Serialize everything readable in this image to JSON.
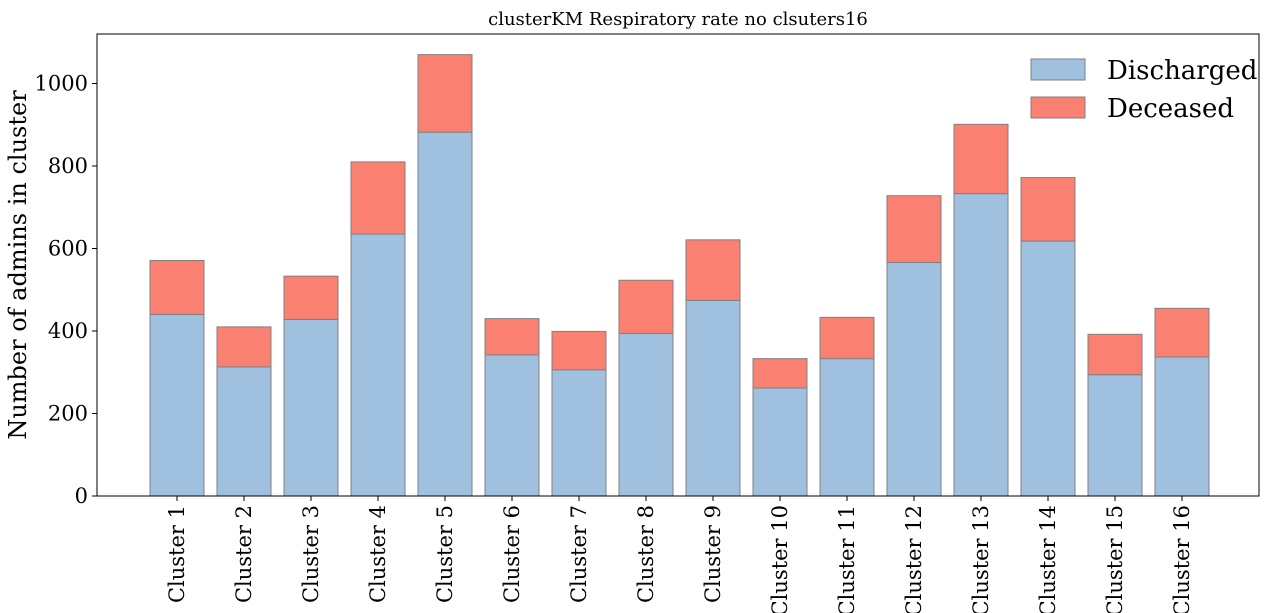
{
  "chart_data": {
    "type": "bar",
    "stacked": true,
    "title": "clusterKM Respiratory rate no clsuters16",
    "xlabel": "",
    "ylabel": "Number of admins in cluster",
    "ylim": [
      0,
      1120
    ],
    "yticks": [
      0,
      200,
      400,
      600,
      800,
      1000
    ],
    "grid": false,
    "legend_position": "top-right",
    "categories": [
      "Cluster 1",
      "Cluster 2",
      "Cluster 3",
      "Cluster 4",
      "Cluster 5",
      "Cluster 6",
      "Cluster 7",
      "Cluster 8",
      "Cluster 9",
      "Cluster 10",
      "Cluster 11",
      "Cluster 12",
      "Cluster 13",
      "Cluster 14",
      "Cluster 15",
      "Cluster 16"
    ],
    "series": [
      {
        "name": "Discharged",
        "color": "#a0c0e0",
        "values": [
          440,
          313,
          428,
          635,
          882,
          342,
          306,
          394,
          474,
          262,
          333,
          566,
          733,
          618,
          294,
          337
        ]
      },
      {
        "name": "Deceased",
        "color": "#fa8072",
        "values": [
          131,
          97,
          105,
          175,
          188,
          88,
          93,
          129,
          147,
          71,
          100,
          162,
          168,
          154,
          98,
          118
        ]
      }
    ]
  }
}
